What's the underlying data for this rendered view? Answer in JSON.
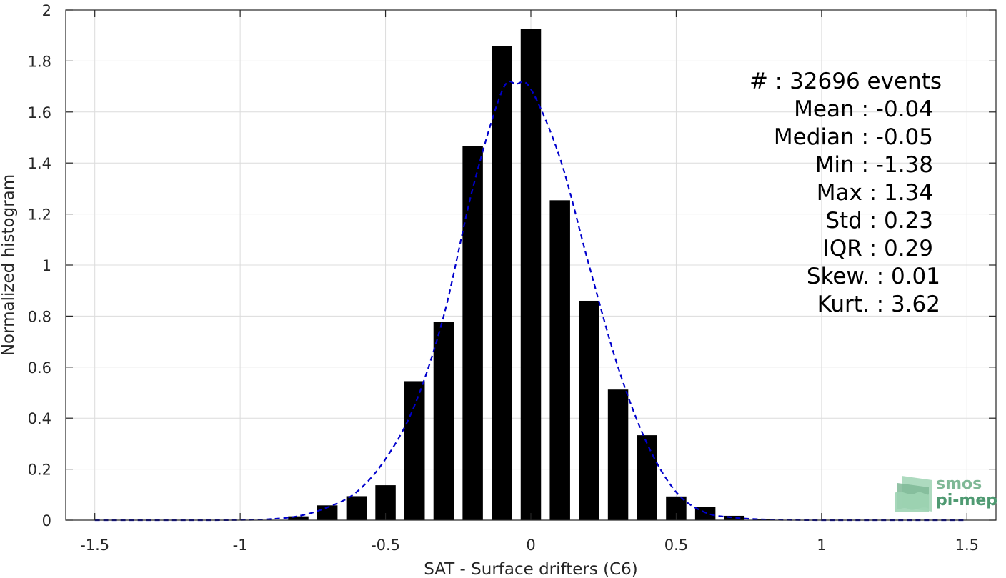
{
  "chart_data": {
    "type": "bar",
    "xlabel": "SAT - Surface drifters (C6)",
    "ylabel": "Normalized histogram",
    "xlim": [
      -1.6,
      1.6
    ],
    "ylim": [
      0,
      2
    ],
    "xticks": [
      -1.5,
      -1,
      -0.5,
      0,
      0.5,
      1,
      1.5
    ],
    "xtick_labels": [
      "-1.5",
      "-1",
      "-0.5",
      "0",
      "0.5",
      "1",
      "1.5"
    ],
    "yticks": [
      0,
      0.2,
      0.4,
      0.6,
      0.8,
      1,
      1.2,
      1.4,
      1.6,
      1.8,
      2
    ],
    "ytick_labels": [
      "0",
      "0.2",
      "0.4",
      "0.6",
      "0.8",
      "1",
      "1.2",
      "1.4",
      "1.6",
      "1.8",
      "2"
    ],
    "grid": true,
    "bar_width": 0.07,
    "bars": {
      "x": [
        -1.4,
        -1.3,
        -1.2,
        -1.1,
        -1.0,
        -0.9,
        -0.8,
        -0.7,
        -0.6,
        -0.5,
        -0.4,
        -0.3,
        -0.2,
        -0.1,
        0.0,
        0.1,
        0.2,
        0.3,
        0.4,
        0.5,
        0.6,
        0.7,
        0.8,
        0.9,
        1.0,
        1.1,
        1.2,
        1.3
      ],
      "values": [
        0.001,
        0.0,
        0.0,
        0.0,
        0.0,
        0.001,
        0.015,
        0.058,
        0.094,
        0.137,
        0.545,
        0.776,
        1.466,
        1.858,
        1.927,
        1.254,
        0.86,
        0.512,
        0.333,
        0.093,
        0.052,
        0.017,
        0.003,
        0.001,
        0.0,
        0.0,
        0.0,
        0.001
      ],
      "color": "#000000"
    },
    "fit_curve": {
      "style": "dashed",
      "color": "#0000cc",
      "x": [
        -1.5,
        -1.3,
        -1.1,
        -1.0,
        -0.9,
        -0.8,
        -0.7,
        -0.6,
        -0.5,
        -0.4,
        -0.3,
        -0.2,
        -0.1,
        -0.05,
        0.0,
        0.1,
        0.2,
        0.3,
        0.4,
        0.5,
        0.6,
        0.7,
        0.8,
        0.9,
        1.0,
        1.2,
        1.5
      ],
      "y": [
        0.0,
        0.0,
        0.0,
        0.001,
        0.004,
        0.016,
        0.05,
        0.11,
        0.24,
        0.45,
        0.8,
        1.3,
        1.68,
        1.71,
        1.69,
        1.42,
        1.0,
        0.6,
        0.3,
        0.11,
        0.03,
        0.01,
        0.003,
        0.001,
        0.0,
        0.0,
        0.0
      ]
    },
    "annotations": [
      {
        "label": "#  :",
        "value": "32696 events"
      },
      {
        "label": "Mean :",
        "value": "-0.04"
      },
      {
        "label": "Median :",
        "value": "-0.05"
      },
      {
        "label": "Min :",
        "value": "-1.38"
      },
      {
        "label": "Max :",
        "value": "1.34"
      },
      {
        "label": "Std :",
        "value": "0.23"
      },
      {
        "label": "IQR :",
        "value": "0.29"
      },
      {
        "label": "Skew. :",
        "value": "0.01"
      },
      {
        "label": "Kurt. :",
        "value": "3.62"
      }
    ]
  },
  "logo": {
    "line1": "smos",
    "line2": "pi-mep",
    "color_light": "#9fd4b4",
    "color_dark": "#4f9a72",
    "color_text": "#7fb896"
  }
}
